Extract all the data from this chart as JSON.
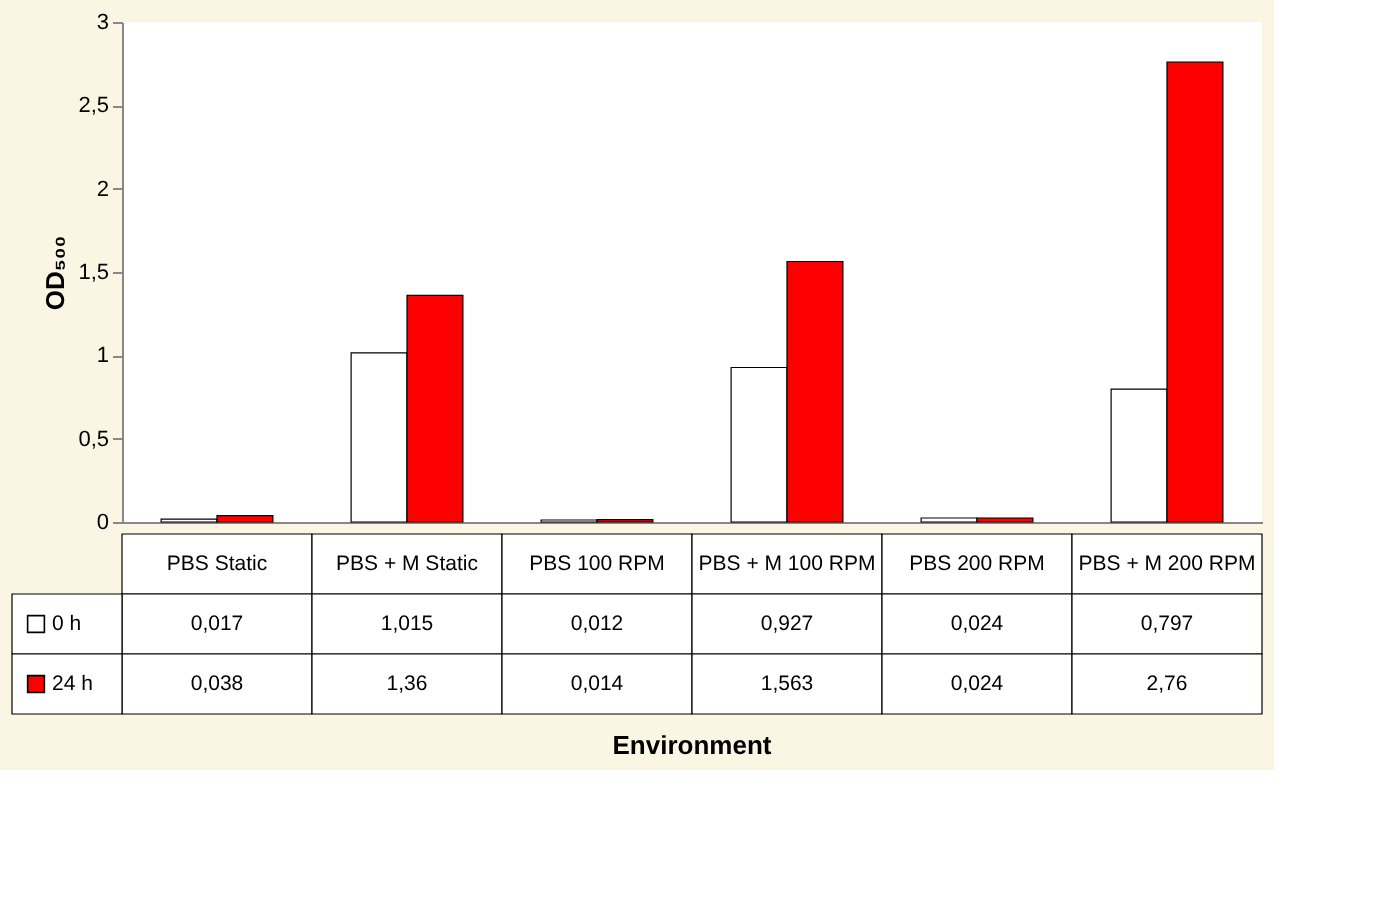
{
  "chart_data": {
    "type": "bar",
    "ylabel": "OD₅₀₀",
    "annotations": [
      "Environment"
    ],
    "categories": [
      "PBS Static",
      "PBS + M Static",
      "PBS 100 RPM",
      "PBS + M 100 RPM",
      "PBS 200 RPM",
      "PBS + M 200 RPM"
    ],
    "series": [
      {
        "name": "0 h",
        "color": "#ffffff",
        "values": [
          0.017,
          1.015,
          0.012,
          0.927,
          0.024,
          0.797
        ],
        "value_labels": [
          "0,017",
          "1,015",
          "0,012",
          "0,927",
          "0,024",
          "0,797"
        ]
      },
      {
        "name": "24 h",
        "color": "#ff0000",
        "values": [
          0.038,
          1.36,
          0.014,
          1.563,
          0.024,
          2.76
        ],
        "value_labels": [
          "0,038",
          "1,36",
          "0,014",
          "1,563",
          "0,024",
          "2,76"
        ]
      }
    ],
    "ylim": [
      0,
      3
    ],
    "yticks": [
      0,
      {
        "value": 0.5,
        "label": "0,5"
      },
      1,
      {
        "value": 1.5,
        "label": "1,5"
      },
      2,
      {
        "value": 2.5,
        "label": "2,5"
      },
      3
    ],
    "legend": "bottom left"
  }
}
